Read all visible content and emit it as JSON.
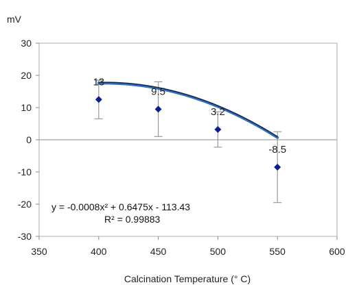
{
  "chart_data": {
    "type": "scatter",
    "title": "",
    "unit_label": "mV",
    "xlabel": "Calcination Temperature (° C)",
    "ylabel": "",
    "xlim": [
      350,
      600
    ],
    "ylim": [
      -30,
      30
    ],
    "x_ticks": [
      350,
      400,
      450,
      500,
      550,
      600
    ],
    "y_ticks": [
      -30,
      -20,
      -10,
      0,
      10,
      20,
      30
    ],
    "grid": false,
    "legend": "none",
    "series": [
      {
        "x": [
          400,
          450,
          500,
          550
        ],
        "y": [
          12.5,
          9.5,
          3.2,
          -8.5
        ],
        "error_y": [
          6.0,
          8.5,
          5.5,
          11.0
        ],
        "data_labels": [
          "13",
          "9.5",
          "3.2",
          "-8.5"
        ],
        "color": "#0b1f8f"
      }
    ],
    "trendline": {
      "type": "polynomial",
      "coefficients": [
        -0.0008,
        0.6475,
        -113.43
      ],
      "equation_text": "y = -0.0008x² + 0.6475x - 113.43",
      "r2_text": "R² = 0.99883",
      "color": "#2a6fd0",
      "highlight_color": "#222222"
    },
    "colors": {
      "marker": "#0b1f8f",
      "error_bar": "#9a9a9a",
      "axis": "#888888",
      "plot_border": "#aaaaaa"
    }
  }
}
